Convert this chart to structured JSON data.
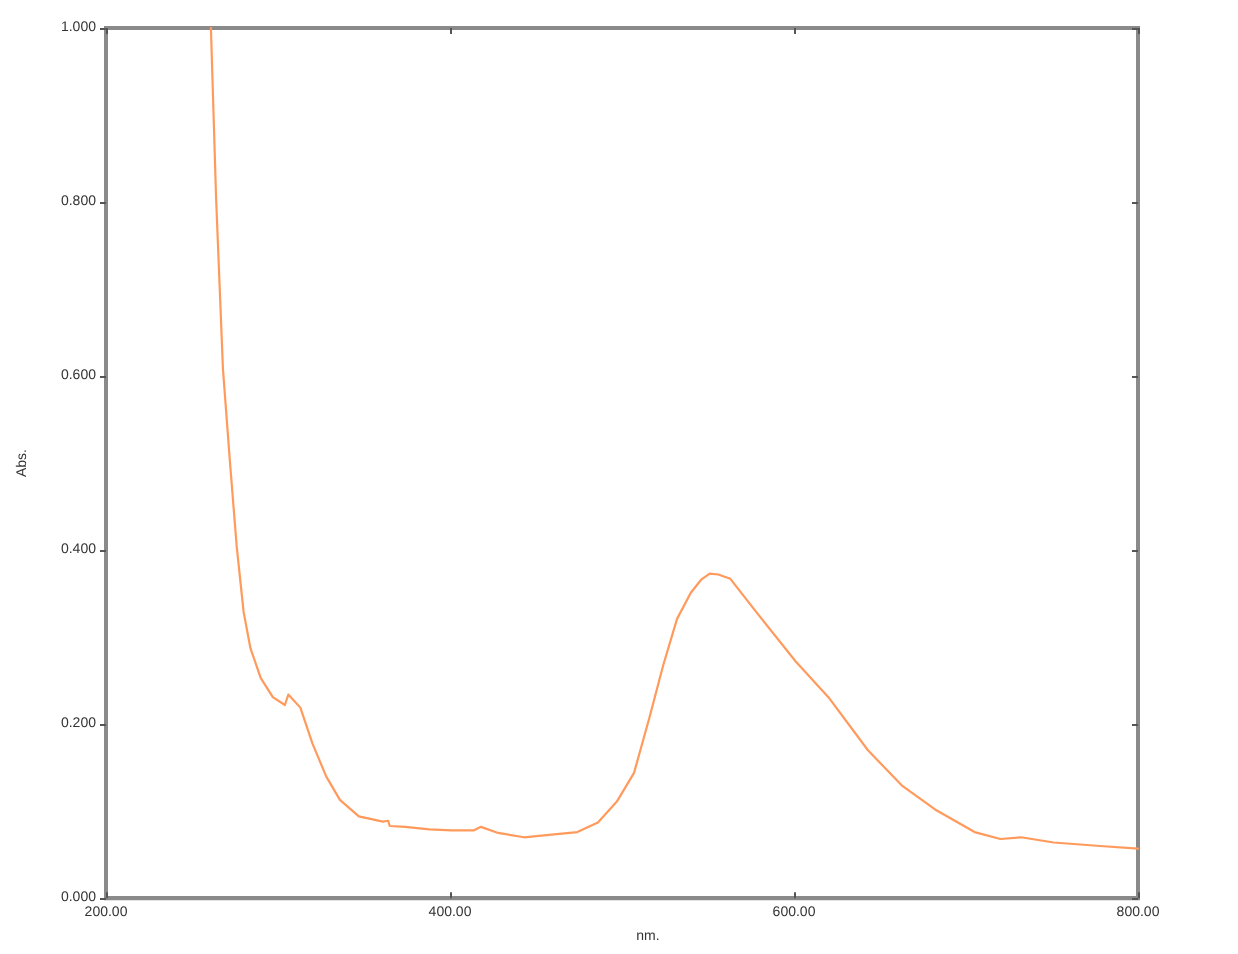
{
  "chart_data": {
    "type": "line",
    "xlabel": "nm.",
    "ylabel": "Abs.",
    "x": [
      261,
      264,
      268,
      272,
      276,
      280,
      284,
      290,
      297,
      304,
      306,
      313,
      320,
      328,
      336,
      347,
      361,
      364,
      365,
      374,
      388,
      401,
      414,
      418,
      428,
      443,
      459,
      474,
      486,
      497,
      507,
      516,
      524,
      532,
      540,
      546,
      551,
      556,
      563,
      578,
      601,
      620,
      643,
      663,
      682,
      705,
      720,
      732,
      751,
      778,
      800
    ],
    "series": [
      {
        "color": "#ff9a5c",
        "values": [
          1.0,
          0.805,
          0.608,
          0.503,
          0.404,
          0.329,
          0.287,
          0.253,
          0.231,
          0.222,
          0.234,
          0.219,
          0.178,
          0.14,
          0.113,
          0.094,
          0.088,
          0.089,
          0.083,
          0.082,
          0.079,
          0.078,
          0.078,
          0.082,
          0.075,
          0.07,
          0.073,
          0.076,
          0.087,
          0.111,
          0.144,
          0.208,
          0.268,
          0.321,
          0.351,
          0.366,
          0.373,
          0.372,
          0.367,
          0.329,
          0.272,
          0.231,
          0.17,
          0.129,
          0.102,
          0.076,
          0.068,
          0.07,
          0.064,
          0.06,
          0.057
        ]
      }
    ],
    "xlim": [
      200,
      800
    ],
    "ylim": [
      0,
      1
    ],
    "xticks": [
      {
        "value": 200,
        "label": "200.00"
      },
      {
        "value": 400,
        "label": "400.00"
      },
      {
        "value": 600,
        "label": "600.00"
      },
      {
        "value": 800,
        "label": "800.00"
      }
    ],
    "yticks": [
      {
        "value": 0,
        "label": "0.000"
      },
      {
        "value": 0.2,
        "label": "0.200"
      },
      {
        "value": 0.4,
        "label": "0.400"
      },
      {
        "value": 0.6,
        "label": "0.600"
      },
      {
        "value": 0.8,
        "label": "0.800"
      },
      {
        "value": 1,
        "label": "1.000"
      }
    ],
    "grid": false,
    "marker": "none",
    "line_style": "solid"
  }
}
